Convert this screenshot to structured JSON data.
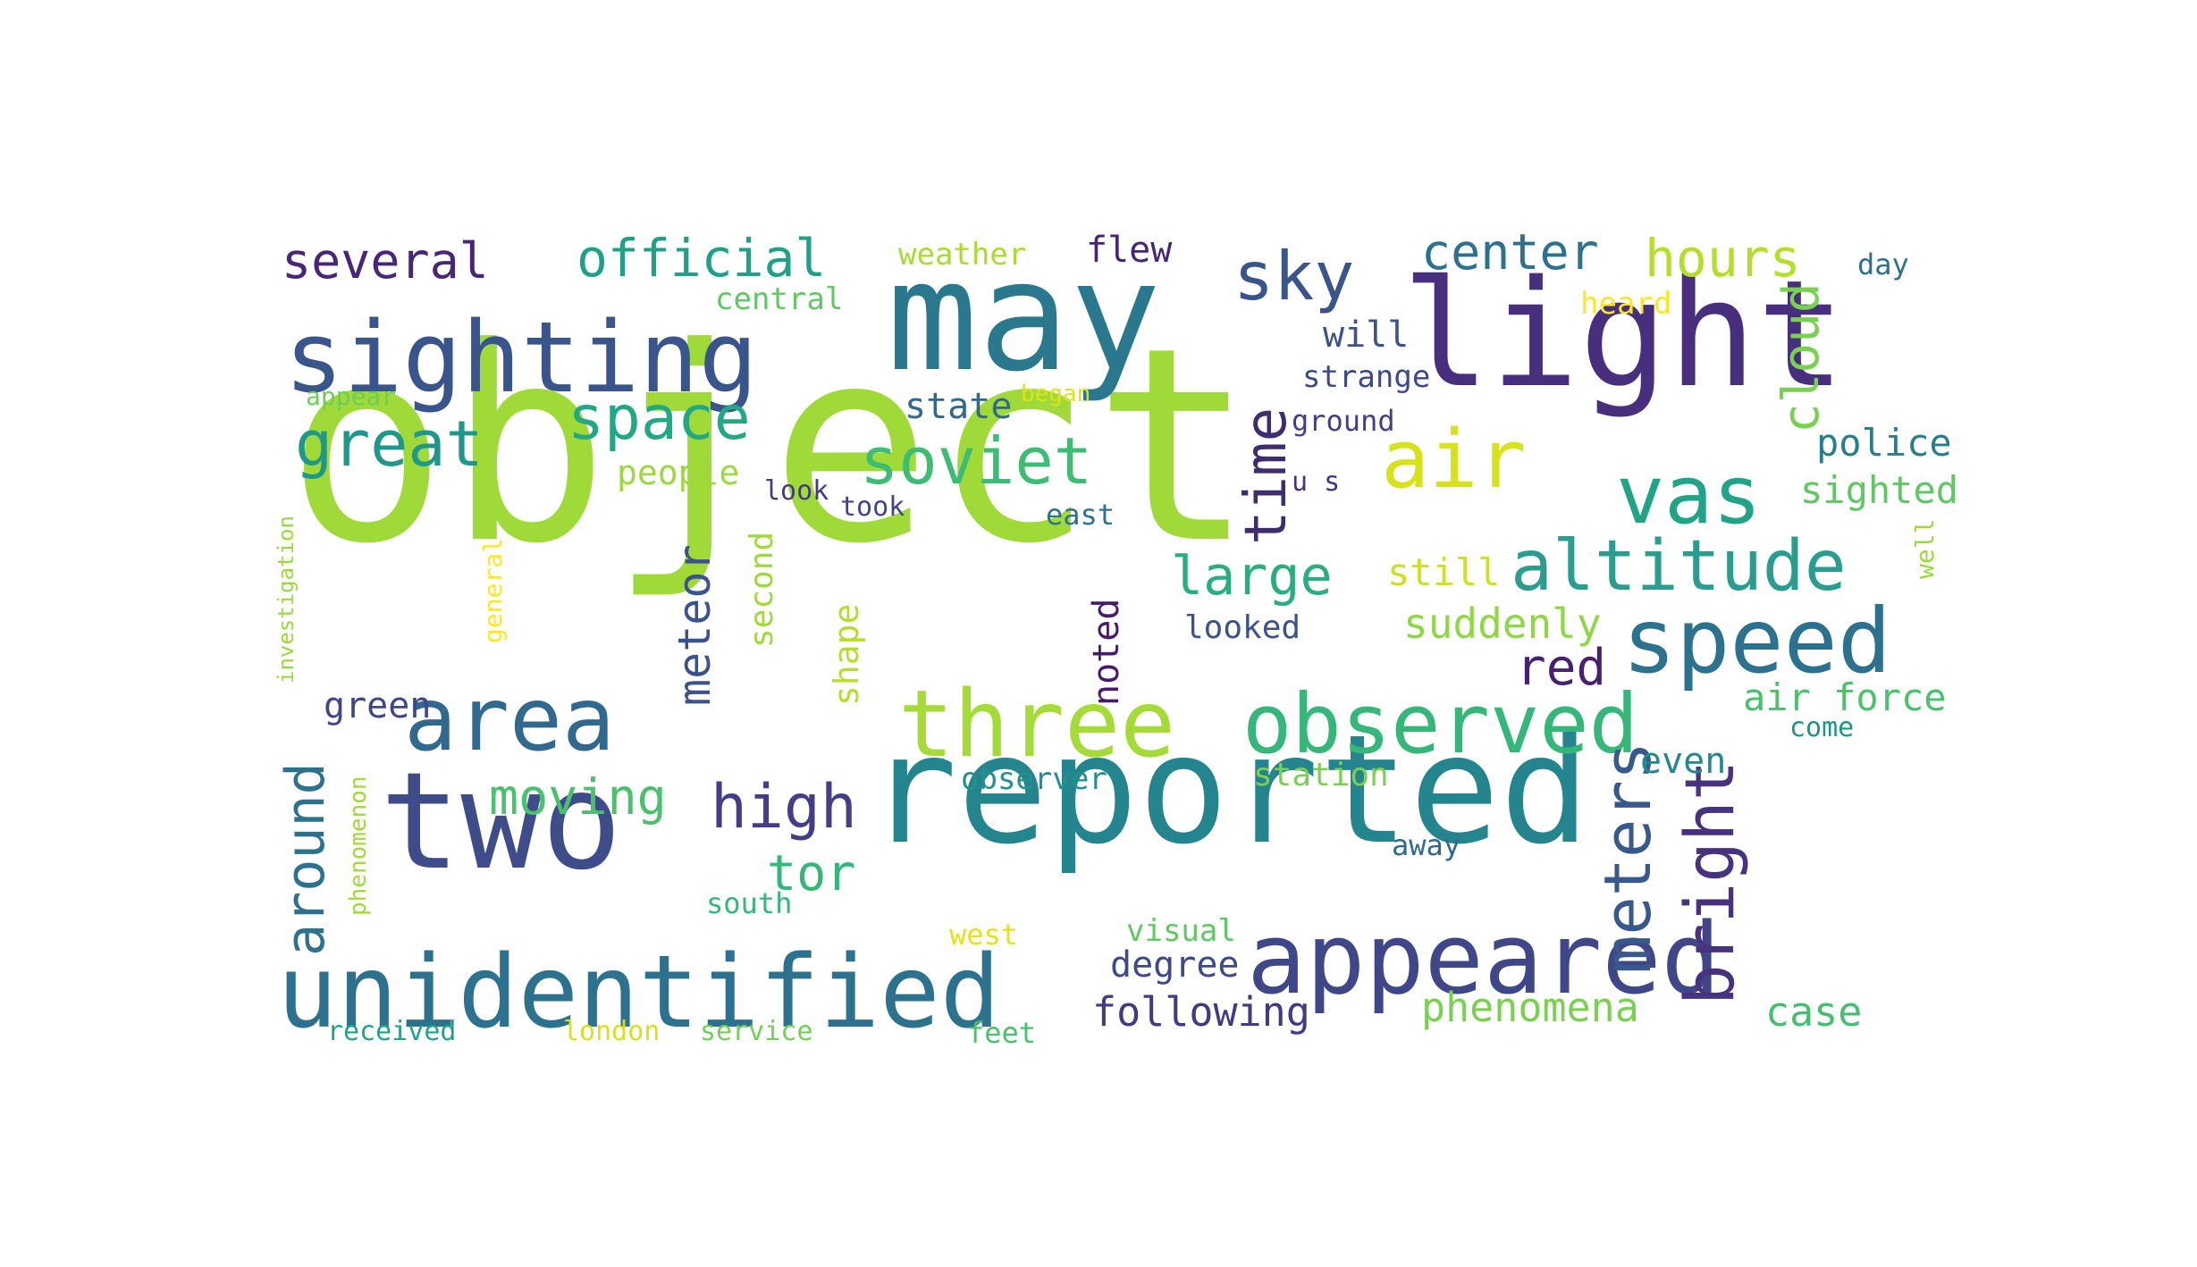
{
  "words": [
    {
      "text": "object",
      "color": "#a0da39"
    },
    {
      "text": "reported",
      "color": "#25858e"
    },
    {
      "text": "may",
      "color": "#2a788e"
    },
    {
      "text": "light",
      "color": "#472f7d"
    },
    {
      "text": "two",
      "color": "#3e4c8a"
    },
    {
      "text": "sighting",
      "color": "#3a548c"
    },
    {
      "text": "unidentified",
      "color": "#2c718e"
    },
    {
      "text": "appeared",
      "color": "#3f4788"
    },
    {
      "text": "three",
      "color": "#a5db36"
    },
    {
      "text": "observed",
      "color": "#35b779"
    },
    {
      "text": "speed",
      "color": "#2c728e"
    },
    {
      "text": "area",
      "color": "#31688e"
    },
    {
      "text": "altitude",
      "color": "#2a9d8f"
    },
    {
      "text": "vas",
      "color": "#20a386"
    },
    {
      "text": "soviet",
      "color": "#3dbc74"
    },
    {
      "text": "air",
      "color": "#d8e219"
    },
    {
      "text": "space",
      "color": "#22a884"
    },
    {
      "text": "great",
      "color": "#1f988b"
    },
    {
      "text": "sky",
      "color": "#3a548c"
    },
    {
      "text": "time",
      "color": "#3f2c70"
    },
    {
      "text": "official",
      "color": "#1fa187"
    },
    {
      "text": "several",
      "color": "#482576"
    },
    {
      "text": "center",
      "color": "#2c728e"
    },
    {
      "text": "hours",
      "color": "#b5de2b"
    },
    {
      "text": "cloud",
      "color": "#7ad151"
    },
    {
      "text": "large",
      "color": "#29af7f"
    },
    {
      "text": "meteor",
      "color": "#3b528b"
    },
    {
      "text": "around",
      "color": "#2c728e"
    },
    {
      "text": "high",
      "color": "#433e85"
    },
    {
      "text": "meters",
      "color": "#38598c"
    },
    {
      "text": "bright",
      "color": "#46327e"
    },
    {
      "text": "moving",
      "color": "#4ac16d"
    },
    {
      "text": "tor",
      "color": "#35b779"
    },
    {
      "text": "red",
      "color": "#482071"
    },
    {
      "text": "suddenly",
      "color": "#8fd744"
    },
    {
      "text": "still",
      "color": "#cde11d"
    },
    {
      "text": "air force",
      "color": "#4ac16d"
    },
    {
      "text": "police",
      "color": "#277f8e"
    },
    {
      "text": "sighted",
      "color": "#5ec962"
    },
    {
      "text": "phenomena",
      "color": "#7ad151"
    },
    {
      "text": "following",
      "color": "#443983"
    },
    {
      "text": "degree",
      "color": "#3e4989"
    },
    {
      "text": "case",
      "color": "#44bf70"
    },
    {
      "text": "even",
      "color": "#23898e"
    },
    {
      "text": "noted",
      "color": "#481a6c"
    },
    {
      "text": "shape",
      "color": "#b5de2b"
    },
    {
      "text": "second",
      "color": "#a0da39"
    },
    {
      "text": "green",
      "color": "#414487"
    },
    {
      "text": "people",
      "color": "#9bd93c"
    },
    {
      "text": "flew",
      "color": "#482475"
    },
    {
      "text": "weather",
      "color": "#a8db34"
    },
    {
      "text": "central",
      "color": "#5ec962"
    },
    {
      "text": "will",
      "color": "#3b528b"
    },
    {
      "text": "strange",
      "color": "#3e4989"
    },
    {
      "text": "state",
      "color": "#31688e"
    },
    {
      "text": "ground",
      "color": "#433e85"
    },
    {
      "text": "heard",
      "color": "#fde725"
    },
    {
      "text": "day",
      "color": "#2d708e"
    },
    {
      "text": "appear",
      "color": "#6ccd5a"
    },
    {
      "text": "began",
      "color": "#dde318"
    },
    {
      "text": "look",
      "color": "#443983"
    },
    {
      "text": "took",
      "color": "#414487"
    },
    {
      "text": "u s",
      "color": "#46327e"
    },
    {
      "text": "east",
      "color": "#2c728e"
    },
    {
      "text": "looked",
      "color": "#3b528b"
    },
    {
      "text": "well",
      "color": "#9bd93c"
    },
    {
      "text": "come",
      "color": "#21918c"
    },
    {
      "text": "station",
      "color": "#7ad151"
    },
    {
      "text": "observer",
      "color": "#21918c"
    },
    {
      "text": "away",
      "color": "#31688e"
    },
    {
      "text": "south",
      "color": "#35b779"
    },
    {
      "text": "west",
      "color": "#e2e418"
    },
    {
      "text": "visual",
      "color": "#5ec962"
    },
    {
      "text": "received",
      "color": "#20a386"
    },
    {
      "text": "london",
      "color": "#d8e219"
    },
    {
      "text": "service",
      "color": "#73d056"
    },
    {
      "text": "feet",
      "color": "#4ac16d"
    },
    {
      "text": "investigation",
      "color": "#9bd93c"
    },
    {
      "text": "general",
      "color": "#fde725"
    },
    {
      "text": "phenomenon",
      "color": "#a0da39"
    }
  ]
}
